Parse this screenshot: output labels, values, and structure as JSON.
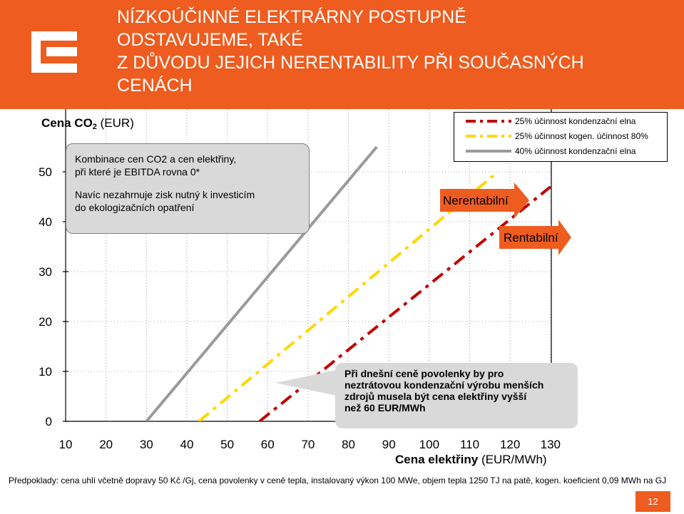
{
  "header": {
    "title_lines": [
      "NÍZKOÚČINNÉ ELEKTRÁRNY POSTUPNĚ",
      "ODSTAVUJEME, TAKÉ",
      "Z DŮVODU JEJICH NERENTABILITY PŘI SOUČASNÝCH",
      "CENÁCH"
    ]
  },
  "colors": {
    "brand": "#ee5c1f",
    "series_red": "#c00000",
    "series_yellow": "#ffd700",
    "series_gray": "#9a9a9a",
    "callout": "#d9d9d9"
  },
  "callouts": {
    "box1_line1": "Kombinace cen CO2 a cen elektřiny,",
    "box1_line2": "při které je EBITDA rovna 0*",
    "box1_line3": "Navíc nezahrnuje zisk nutný k investicím",
    "box1_line4": "do ekologizačních opatření",
    "box2_line1": "Při dnešní ceně povolenky by pro",
    "box2_line2": "neztrátovou kondenzační výrobu menších",
    "box2_line3": "zdrojů musela být cena elektřiny vyšší",
    "box2_line4": "než 60 EUR/MWh"
  },
  "arrows": {
    "nerentabilni": "Nerentabilní",
    "rentabilni": "Rentabilní"
  },
  "chart_data": {
    "type": "line",
    "y_axis_name": {
      "bold_prefix": "Cena CO",
      "subscript": "2",
      "suffix": " (EUR)"
    },
    "x_axis_name": {
      "bold": "Cena elektřiny",
      "suffix": " (EUR/MWh)"
    },
    "x_ticks": [
      10,
      20,
      30,
      40,
      50,
      60,
      70,
      80,
      90,
      100,
      110,
      120,
      130
    ],
    "y_ticks": [
      0,
      10,
      20,
      30,
      40,
      50
    ],
    "xlim": [
      10,
      130
    ],
    "ylim": [
      0,
      50
    ],
    "grid": true,
    "legend_position": "top-right",
    "series": [
      {
        "name": "25% účinnost kondenzační elna",
        "color": "#c00000",
        "dash": "dashdot",
        "x": [
          58,
          130
        ],
        "y": [
          0,
          47
        ]
      },
      {
        "name": "25% účinnost kogen. účinnost 80%",
        "color": "#ffd700",
        "dash": "dashdot",
        "x": [
          43,
          117
        ],
        "y": [
          0,
          50
        ]
      },
      {
        "name": "40% účinnost kondenzační elna",
        "color": "#9a9a9a",
        "dash": "solid",
        "x": [
          30,
          87
        ],
        "y": [
          0,
          55
        ]
      }
    ]
  },
  "footer": {
    "assumptions": "Předpoklady: cena uhlí včetně dopravy 50 Kč /Gj, cena povolenky v ceně tepla, instalovaný výkon 100 MWe, objem tepla 1250 TJ na patě, kogen. koeficient 0,09 MWh na GJ",
    "page_number": "12"
  }
}
